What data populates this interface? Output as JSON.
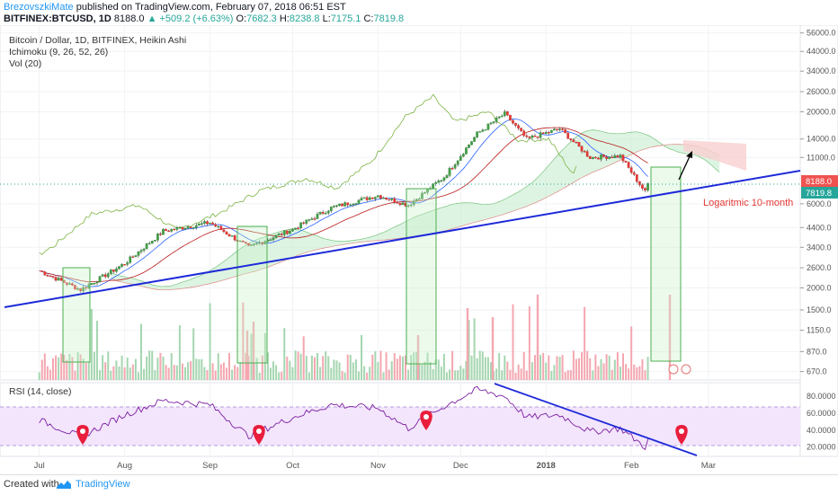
{
  "header": {
    "author": "BrezovszkiMate",
    "published": "published on TradingView.com, February 07, 2018 06:51 EST",
    "symbol": "BITFINEX:BTCUSD, 1D",
    "last": "8188.0",
    "change": "▲ +509.2 (+6.63%)",
    "o_label": "O:",
    "o": "7682.3",
    "h_label": "H:",
    "h": "8238.8",
    "l_label": "L:",
    "l": "7175.1",
    "c_label": "C:",
    "c": "7819.8"
  },
  "legend": {
    "title": "Bitcoin / Dollar, 1D, BITFINEX, Heikin Ashi",
    "ichimoku": "Ichimoku (9, 26, 52, 26)",
    "vol": "Vol (20)"
  },
  "annotation": "Logaritmic 10-month",
  "price_labels": {
    "last": "8188.0",
    "close": "7819.8"
  },
  "rsi_legend": "RSI (14, close)",
  "footer": {
    "created": "Created with",
    "brand": "TradingView"
  },
  "colors": {
    "up": "#26a69a",
    "down": "#ef5350",
    "trendline": "#1e2ad9",
    "box": "#4caf50",
    "rsi": "#7b1fa2",
    "rsi_band": "#e9d4f7",
    "pin": "#e91e3c",
    "cloud_up": "#c8ecd0",
    "cloud_down": "#f8cfcf"
  },
  "chart_data": {
    "type": "candlestick",
    "title": "Bitcoin / Dollar, 1D, BITFINEX, Heikin Ashi",
    "x_ticks": [
      "Jul",
      "Aug",
      "Sep",
      "Oct",
      "Nov",
      "Dec",
      "2018",
      "Feb",
      "Mar"
    ],
    "y_scale": "log",
    "y_ticks": [
      "56000.0",
      "44000.0",
      "34000.0",
      "26000.0",
      "20000.0",
      "14000.0",
      "11000.0",
      "8188.0",
      "7819.8",
      "6000.0",
      "4400.0",
      "3400.0",
      "2600.0",
      "2000.0",
      "1500.0",
      "1150.0",
      "870.0",
      "670.0"
    ],
    "rsi_ticks": [
      "80.0000",
      "60.0000",
      "40.0000",
      "20.0000"
    ],
    "price_series": [
      {
        "date": "2017-07-01",
        "close": 2500
      },
      {
        "date": "2017-07-16",
        "close": 1950
      },
      {
        "date": "2017-08-01",
        "close": 2750
      },
      {
        "date": "2017-08-15",
        "close": 4200
      },
      {
        "date": "2017-09-01",
        "close": 4700
      },
      {
        "date": "2017-09-15",
        "close": 3400
      },
      {
        "date": "2017-10-01",
        "close": 4300
      },
      {
        "date": "2017-10-15",
        "close": 5700
      },
      {
        "date": "2017-11-01",
        "close": 6700
      },
      {
        "date": "2017-11-12",
        "close": 5900
      },
      {
        "date": "2017-11-25",
        "close": 8500
      },
      {
        "date": "2017-12-07",
        "close": 15000
      },
      {
        "date": "2017-12-17",
        "close": 19500
      },
      {
        "date": "2017-12-25",
        "close": 14000
      },
      {
        "date": "2018-01-06",
        "close": 16000
      },
      {
        "date": "2018-01-17",
        "close": 11000
      },
      {
        "date": "2018-01-28",
        "close": 11200
      },
      {
        "date": "2018-02-06",
        "close": 7000
      },
      {
        "date": "2018-02-07",
        "close": 7819.8
      }
    ],
    "rsi_series": [
      {
        "date": "2017-07-01",
        "value": 52
      },
      {
        "date": "2017-07-16",
        "value": 32
      },
      {
        "date": "2017-08-01",
        "value": 58
      },
      {
        "date": "2017-08-15",
        "value": 75
      },
      {
        "date": "2017-09-01",
        "value": 70
      },
      {
        "date": "2017-09-15",
        "value": 33
      },
      {
        "date": "2017-10-01",
        "value": 55
      },
      {
        "date": "2017-10-15",
        "value": 70
      },
      {
        "date": "2017-11-01",
        "value": 66
      },
      {
        "date": "2017-11-12",
        "value": 42
      },
      {
        "date": "2017-11-25",
        "value": 68
      },
      {
        "date": "2017-12-07",
        "value": 88
      },
      {
        "date": "2017-12-17",
        "value": 80
      },
      {
        "date": "2017-12-25",
        "value": 55
      },
      {
        "date": "2018-01-06",
        "value": 58
      },
      {
        "date": "2018-01-17",
        "value": 38
      },
      {
        "date": "2018-01-28",
        "value": 42
      },
      {
        "date": "2018-02-06",
        "value": 20
      },
      {
        "date": "2018-02-07",
        "value": 28
      }
    ]
  }
}
